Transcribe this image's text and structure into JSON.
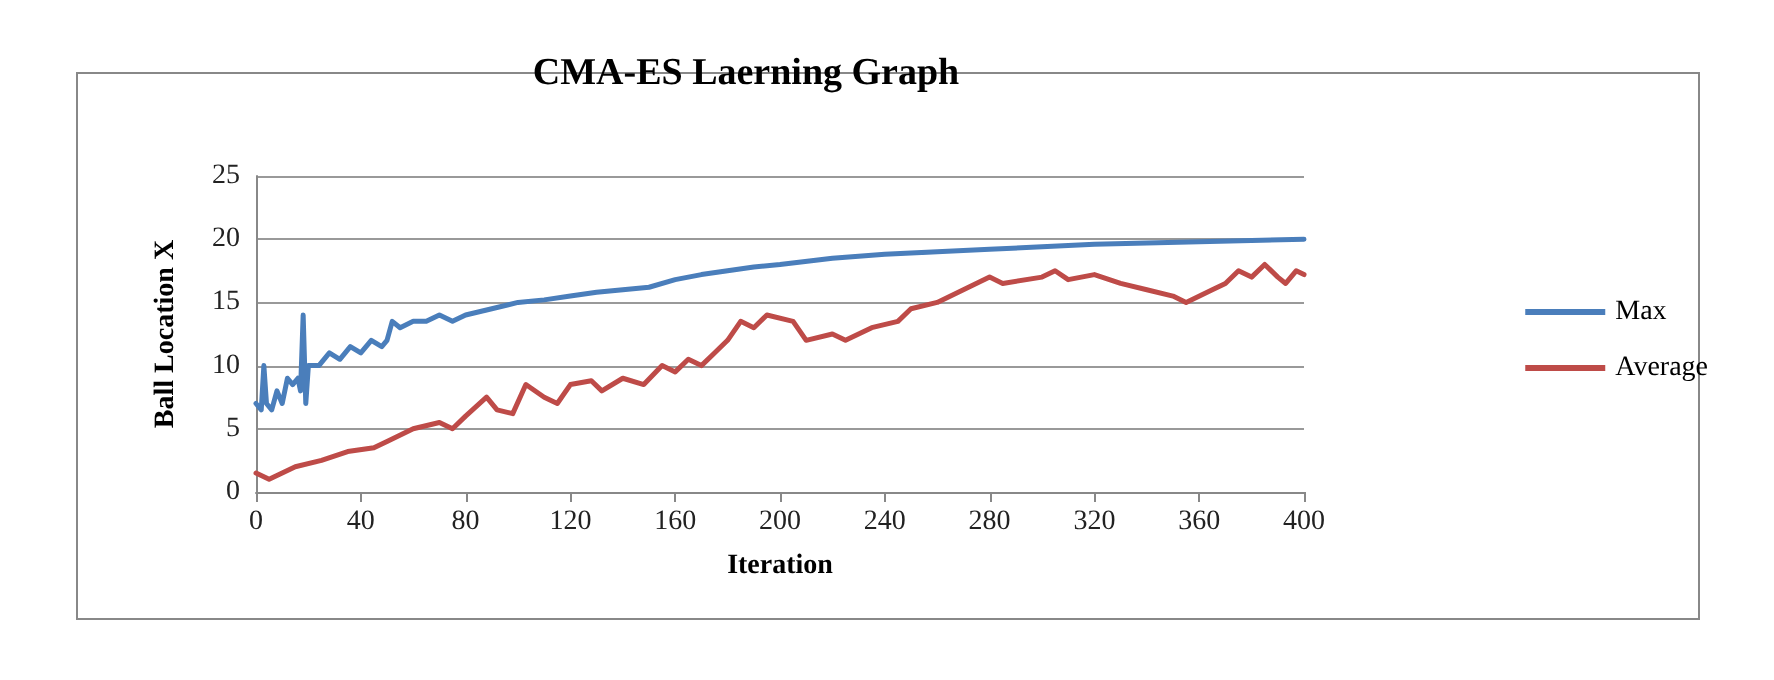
{
  "chart_data": {
    "type": "line",
    "title": "CMA-ES Laerning Graph",
    "xlabel": "Iteration",
    "ylabel": "Ball Location X",
    "xlim": [
      0,
      400
    ],
    "xticks": [
      0,
      40,
      80,
      120,
      160,
      200,
      240,
      280,
      320,
      360,
      400
    ],
    "ylim": [
      0,
      25
    ],
    "yticks": [
      0,
      5,
      10,
      15,
      20,
      25
    ],
    "grid": "y",
    "legend": "right",
    "marker": "none",
    "line_style": "solid",
    "series": [
      {
        "name": "Max",
        "color": "#4a7ebb",
        "x": [
          0,
          2,
          3,
          4,
          6,
          8,
          10,
          12,
          14,
          16,
          17,
          18,
          19,
          20,
          24,
          28,
          32,
          36,
          40,
          44,
          48,
          50,
          52,
          55,
          60,
          65,
          70,
          75,
          80,
          90,
          100,
          110,
          120,
          130,
          140,
          150,
          160,
          170,
          180,
          190,
          200,
          220,
          240,
          260,
          280,
          300,
          320,
          340,
          360,
          380,
          400
        ],
        "values": [
          7,
          6.5,
          10,
          7,
          6.5,
          8,
          7,
          9,
          8.5,
          9,
          8,
          14,
          7,
          10,
          10,
          11,
          10.5,
          11.5,
          11,
          12,
          11.5,
          12,
          13.5,
          13,
          13.5,
          13.5,
          14,
          13.5,
          14,
          14.5,
          15,
          15.2,
          15.5,
          15.8,
          16,
          16.2,
          16.8,
          17.2,
          17.5,
          17.8,
          18,
          18.5,
          18.8,
          19,
          19.2,
          19.4,
          19.6,
          19.7,
          19.8,
          19.9,
          20
        ]
      },
      {
        "name": "Average",
        "color": "#be4b48",
        "x": [
          0,
          5,
          15,
          25,
          35,
          45,
          50,
          60,
          70,
          75,
          80,
          88,
          92,
          98,
          103,
          110,
          115,
          120,
          128,
          132,
          140,
          148,
          155,
          160,
          165,
          170,
          175,
          180,
          185,
          190,
          195,
          205,
          210,
          220,
          225,
          235,
          245,
          250,
          260,
          270,
          280,
          285,
          300,
          305,
          310,
          320,
          330,
          340,
          350,
          355,
          365,
          370,
          375,
          380,
          385,
          390,
          393,
          397,
          400
        ],
        "values": [
          1.5,
          1,
          2,
          2.5,
          3.2,
          3.5,
          4,
          5,
          5.5,
          5,
          6,
          7.5,
          6.5,
          6.2,
          8.5,
          7.5,
          7,
          8.5,
          8.8,
          8,
          9,
          8.5,
          10,
          9.5,
          10.5,
          10,
          11,
          12,
          13.5,
          13,
          14,
          13.5,
          12,
          12.5,
          12,
          13,
          13.5,
          14.5,
          15,
          16,
          17,
          16.5,
          17,
          17.5,
          16.8,
          17.2,
          16.5,
          16,
          15.5,
          15,
          16,
          16.5,
          17.5,
          17,
          18,
          17,
          16.5,
          17.5,
          17.2
        ]
      }
    ]
  }
}
